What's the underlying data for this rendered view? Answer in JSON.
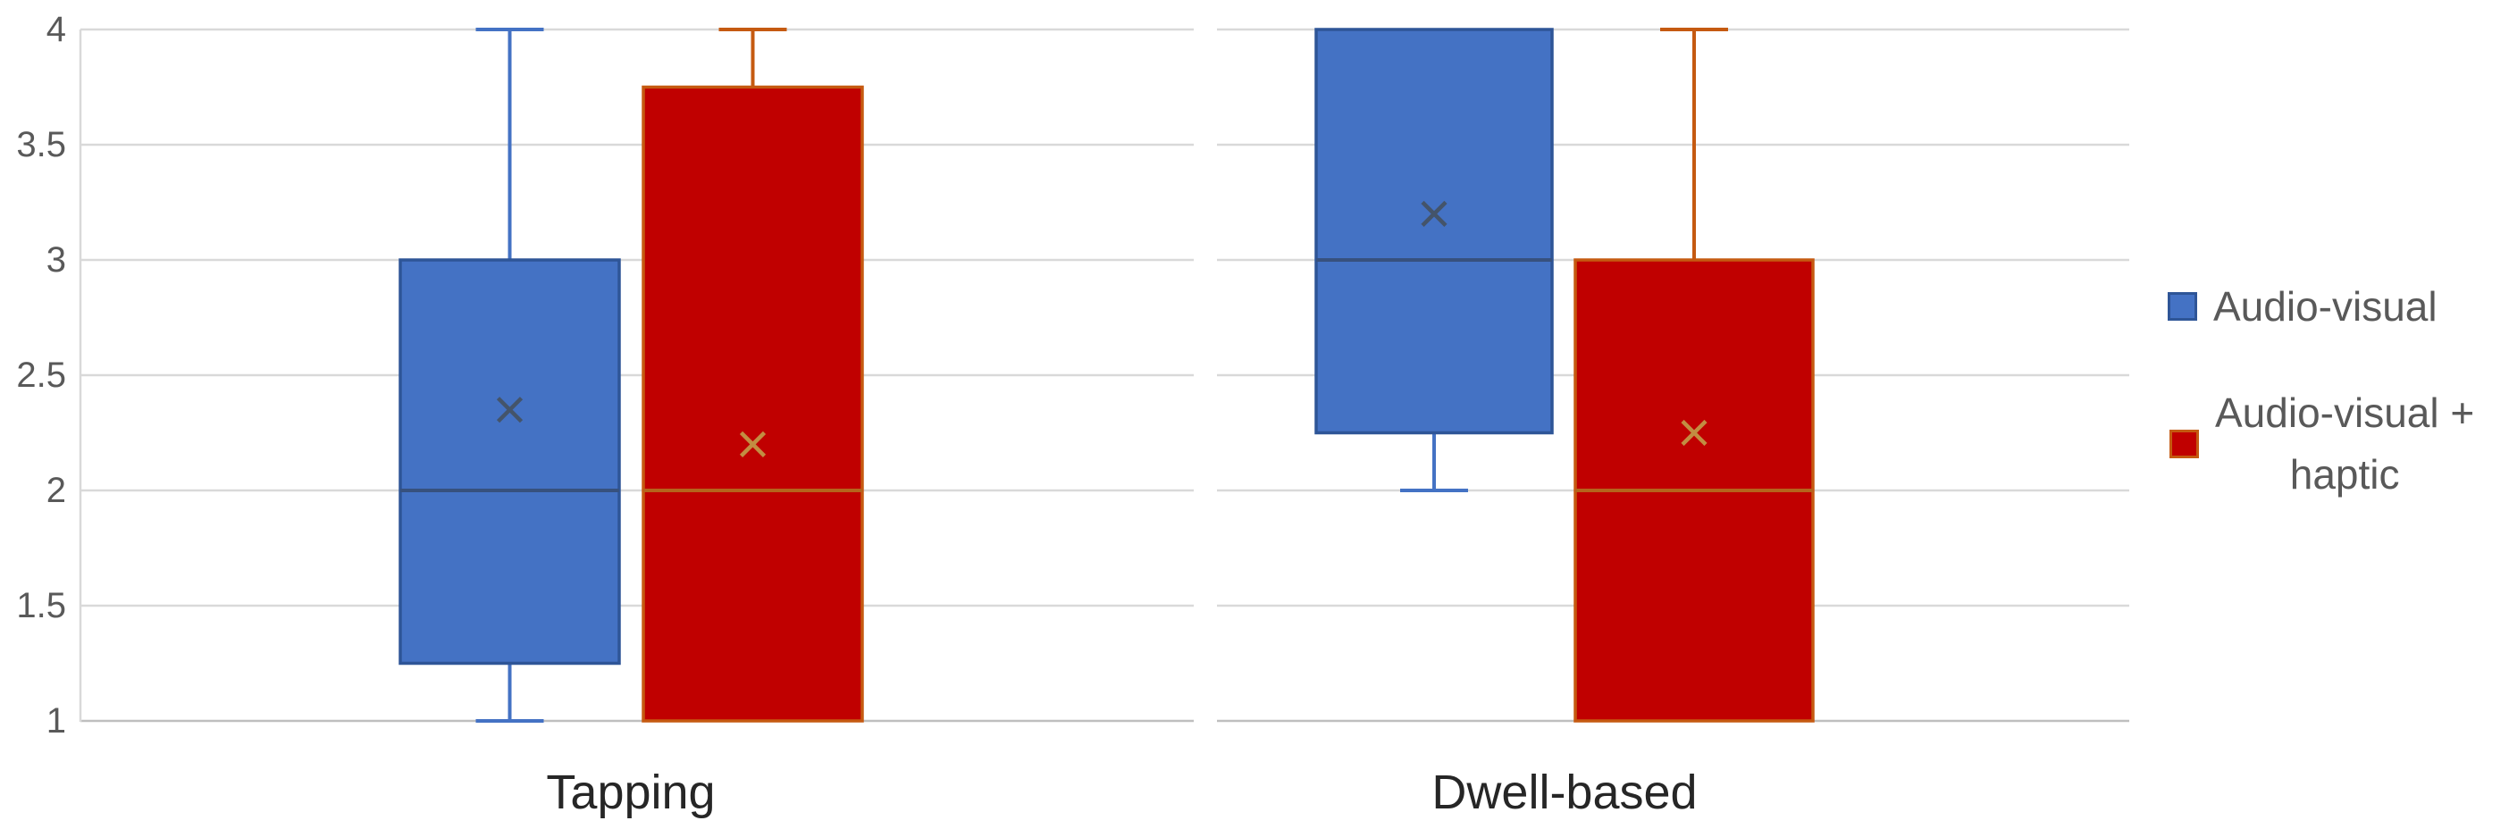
{
  "chart_data": {
    "type": "boxplot",
    "title": "",
    "categories": [
      "Tapping",
      "Dwell-based"
    ],
    "y_axis": {
      "min": 1,
      "max": 4,
      "step": 0.5,
      "ticks": [
        "4",
        "3.5",
        "3",
        "2.5",
        "2",
        "1.5",
        "1"
      ]
    },
    "grid": true,
    "legend_position": "right",
    "series": [
      {
        "name": "Audio-visual",
        "colors": {
          "fill": "#4472C4",
          "border": "#2E5597",
          "whisker": "#4472C4",
          "median": "#37517E",
          "mean": "#44546A"
        },
        "boxes": [
          {
            "category": "Tapping",
            "min": 1,
            "q1": 1.25,
            "median": 2,
            "q3": 3,
            "max": 4,
            "mean": 2.35
          },
          {
            "category": "Dwell-based",
            "min": 2,
            "q1": 2.25,
            "median": 3,
            "q3": 4,
            "max": 4,
            "mean": 3.2
          }
        ]
      },
      {
        "name": "Audio-visual + haptic",
        "colors": {
          "fill": "#C00000",
          "border": "#C55A11",
          "whisker": "#C55A11",
          "median": "#B5641C",
          "mean": "#C28D42"
        },
        "boxes": [
          {
            "category": "Tapping",
            "min": 1,
            "q1": 1,
            "median": 2,
            "q3": 3.75,
            "max": 4,
            "mean": 2.2
          },
          {
            "category": "Dwell-based",
            "min": 1,
            "q1": 1,
            "median": 2,
            "q3": 3,
            "max": 4,
            "mean": 2.25
          }
        ]
      }
    ]
  },
  "legend": {
    "items": [
      {
        "label": "Audio-visual",
        "swatch_color": "#4472C4",
        "swatch_border": "#2E5597"
      },
      {
        "label": "Audio-visual + haptic",
        "lines": [
          "Audio-visual +",
          "haptic"
        ],
        "swatch_color": "#C00000",
        "swatch_border": "#C55A11"
      }
    ]
  }
}
